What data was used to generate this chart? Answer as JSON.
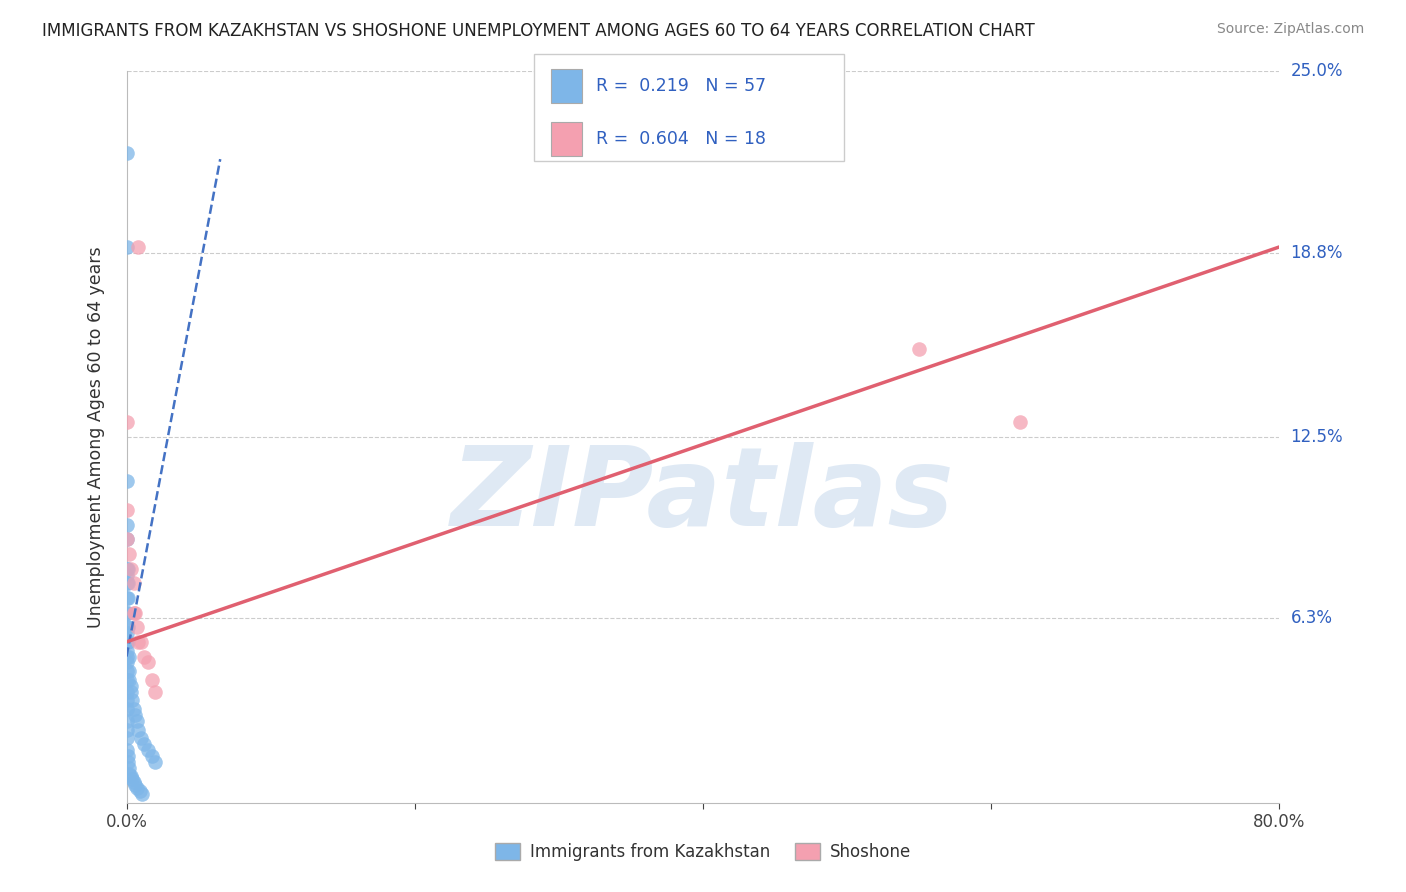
{
  "title": "IMMIGRANTS FROM KAZAKHSTAN VS SHOSHONE UNEMPLOYMENT AMONG AGES 60 TO 64 YEARS CORRELATION CHART",
  "source": "Source: ZipAtlas.com",
  "ylabel": "Unemployment Among Ages 60 to 64 years",
  "xlim": [
    0.0,
    0.8
  ],
  "ylim": [
    0.0,
    0.25
  ],
  "xticks": [
    0.0,
    0.2,
    0.4,
    0.6,
    0.8
  ],
  "xtick_labels": [
    "0.0%",
    "",
    "",
    "",
    "80.0%"
  ],
  "ytick_vals": [
    0.0,
    0.063,
    0.125,
    0.188,
    0.25
  ],
  "ytick_labels": [
    "",
    "6.3%",
    "12.5%",
    "18.8%",
    "25.0%"
  ],
  "watermark": "ZIPatlas",
  "legend_blue_R": "0.219",
  "legend_blue_N": "57",
  "legend_pink_R": "0.604",
  "legend_pink_N": "18",
  "blue_color": "#7eb6e8",
  "pink_color": "#f4a0b0",
  "trend_blue_color": "#4472c4",
  "trend_pink_color": "#e06070",
  "grid_color": "#cccccc",
  "blue_points_x": [
    0.0,
    0.0,
    0.0,
    0.0,
    0.0,
    0.0,
    0.0,
    0.0,
    0.0,
    0.0,
    0.0,
    0.0,
    0.0,
    0.0,
    0.0,
    0.0,
    0.0,
    0.0,
    0.0,
    0.0,
    0.001,
    0.001,
    0.001,
    0.001,
    0.001,
    0.001,
    0.002,
    0.002,
    0.002,
    0.003,
    0.003,
    0.004,
    0.005,
    0.006,
    0.007,
    0.008,
    0.01,
    0.012,
    0.015,
    0.018,
    0.02,
    0.0,
    0.0,
    0.0,
    0.0,
    0.0,
    0.001,
    0.001,
    0.002,
    0.002,
    0.003,
    0.004,
    0.005,
    0.006,
    0.007,
    0.009,
    0.011
  ],
  "blue_points_y": [
    0.222,
    0.19,
    0.11,
    0.095,
    0.09,
    0.08,
    0.078,
    0.075,
    0.07,
    0.065,
    0.06,
    0.058,
    0.055,
    0.052,
    0.05,
    0.048,
    0.045,
    0.042,
    0.038,
    0.035,
    0.08,
    0.075,
    0.07,
    0.065,
    0.06,
    0.055,
    0.05,
    0.045,
    0.042,
    0.04,
    0.038,
    0.035,
    0.032,
    0.03,
    0.028,
    0.025,
    0.022,
    0.02,
    0.018,
    0.016,
    0.014,
    0.032,
    0.028,
    0.025,
    0.022,
    0.018,
    0.016,
    0.014,
    0.012,
    0.01,
    0.009,
    0.008,
    0.007,
    0.006,
    0.005,
    0.004,
    0.003
  ],
  "pink_points_x": [
    0.0,
    0.0,
    0.0,
    0.002,
    0.003,
    0.005,
    0.005,
    0.006,
    0.007,
    0.008,
    0.008,
    0.01,
    0.012,
    0.015,
    0.018,
    0.02,
    0.55,
    0.62
  ],
  "pink_points_y": [
    0.13,
    0.1,
    0.09,
    0.085,
    0.08,
    0.075,
    0.065,
    0.065,
    0.06,
    0.055,
    0.19,
    0.055,
    0.05,
    0.048,
    0.042,
    0.038,
    0.155,
    0.13
  ],
  "blue_trend_x": [
    0.0,
    0.065
  ],
  "blue_trend_y": [
    0.05,
    0.22
  ],
  "pink_trend_x": [
    0.0,
    0.8
  ],
  "pink_trend_y": [
    0.055,
    0.19
  ]
}
